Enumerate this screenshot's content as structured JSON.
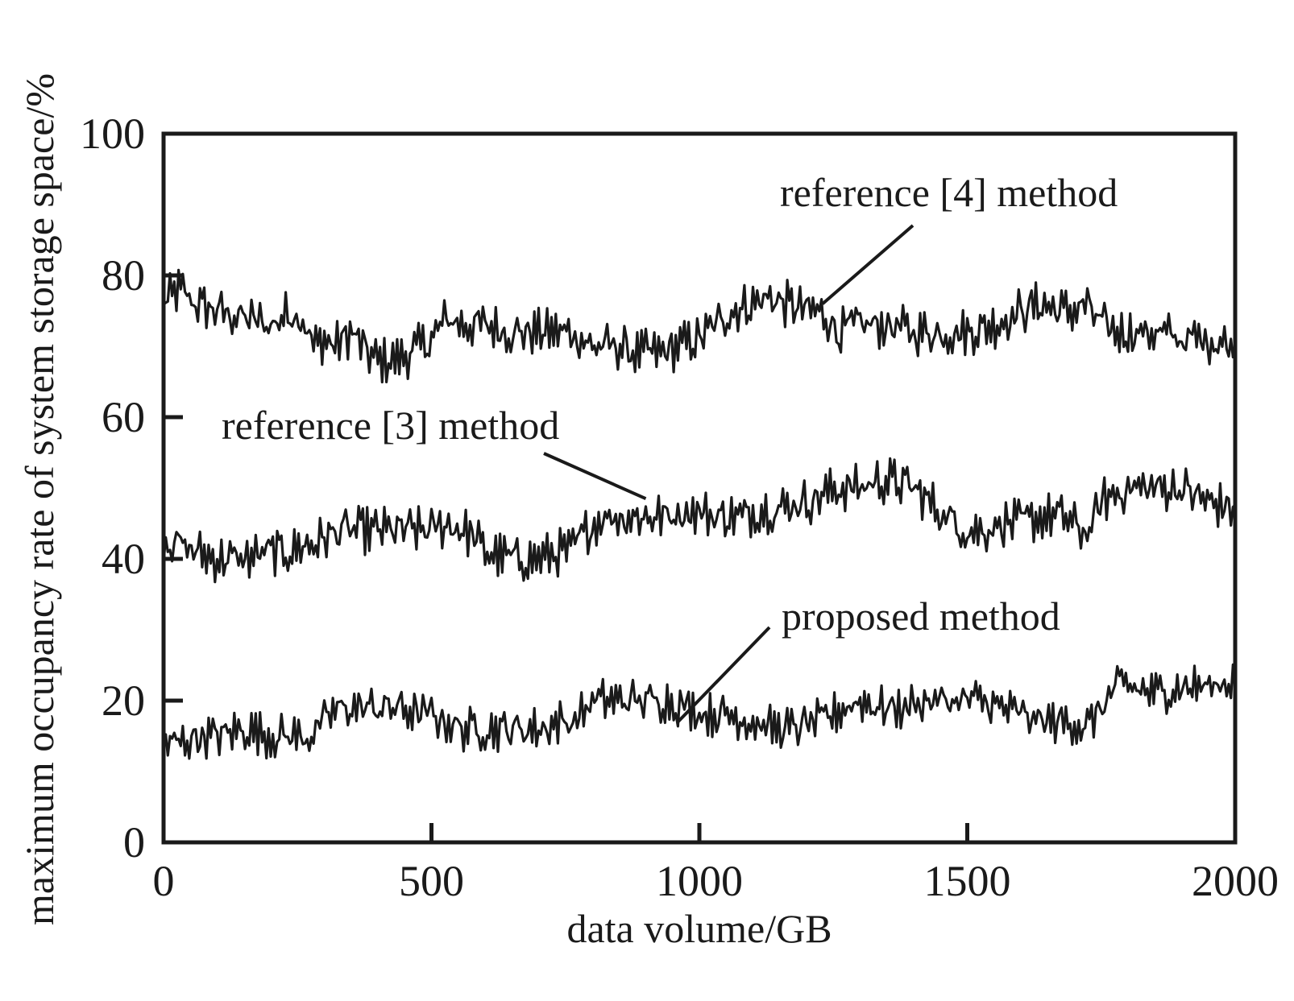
{
  "chart_data": {
    "type": "line",
    "title": "",
    "xlabel": "data volume/GB",
    "ylabel": "maximum occupancy rate of system storage space/%",
    "xlim": [
      0,
      2000
    ],
    "ylim": [
      0,
      100
    ],
    "xticks": [
      "0",
      "500",
      "1000",
      "1500",
      "2000"
    ],
    "yticks": [
      "0",
      "20",
      "40",
      "60",
      "80",
      "100"
    ],
    "grid": false,
    "legend": "none",
    "line_color": "#1a1a1a",
    "series": [
      {
        "name": "reference [4] method",
        "x": [
          0,
          30,
          60,
          100,
          150,
          200,
          240,
          260,
          280,
          300,
          320,
          350,
          380,
          400,
          430,
          460,
          480,
          500,
          530,
          560,
          600,
          650,
          700,
          740,
          760,
          780,
          800,
          850,
          880,
          900,
          930,
          960,
          1000,
          1030,
          1060,
          1100,
          1130,
          1160,
          1200,
          1220,
          1240,
          1260,
          1300,
          1350,
          1400,
          1450,
          1500,
          1550,
          1600,
          1640,
          1670,
          1700,
          1720,
          1750,
          1780,
          1800,
          1850,
          1900,
          1950,
          2000
        ],
        "values": [
          76,
          78,
          76,
          75,
          74,
          73,
          75,
          74,
          70,
          71,
          70,
          72,
          69,
          68,
          68,
          69,
          70,
          71,
          74,
          73,
          73,
          72,
          72,
          72,
          72,
          71,
          70,
          70,
          69,
          69,
          69,
          70,
          71,
          73,
          75,
          76,
          77,
          76,
          75,
          75,
          74,
          72,
          73,
          73,
          72,
          72,
          72,
          73,
          75,
          76,
          75,
          75,
          76,
          73,
          72,
          72,
          72,
          71,
          71,
          70
        ]
      },
      {
        "name": "reference [3] method",
        "x": [
          0,
          30,
          60,
          100,
          150,
          200,
          240,
          260,
          280,
          300,
          330,
          360,
          400,
          450,
          500,
          530,
          560,
          580,
          600,
          650,
          700,
          740,
          760,
          770,
          790,
          820,
          860,
          900,
          940,
          980,
          1030,
          1080,
          1120,
          1150,
          1180,
          1200,
          1230,
          1260,
          1300,
          1330,
          1360,
          1400,
          1430,
          1460,
          1500,
          1530,
          1560,
          1600,
          1640,
          1680,
          1710,
          1730,
          1750,
          1770,
          1800,
          1850,
          1900,
          1950,
          2000
        ],
        "values": [
          43,
          42,
          41,
          40,
          40,
          41,
          41,
          42,
          42,
          43,
          44,
          44,
          44,
          44,
          44,
          45,
          44,
          43,
          41,
          40,
          40,
          41,
          41,
          42,
          44,
          46,
          46,
          46,
          46,
          47,
          46,
          46,
          47,
          47,
          48,
          48,
          49,
          50,
          50,
          51,
          51,
          50,
          48,
          46,
          44,
          44,
          45,
          45,
          46,
          46,
          44,
          44,
          48,
          49,
          50,
          50,
          50,
          48,
          47
        ]
      },
      {
        "name": "proposed method",
        "x": [
          0,
          30,
          60,
          100,
          150,
          200,
          240,
          270,
          290,
          310,
          330,
          360,
          400,
          440,
          480,
          500,
          530,
          560,
          600,
          650,
          700,
          740,
          760,
          780,
          800,
          830,
          860,
          900,
          940,
          980,
          1020,
          1060,
          1100,
          1140,
          1180,
          1210,
          1230,
          1250,
          1270,
          1300,
          1340,
          1380,
          1420,
          1460,
          1500,
          1530,
          1560,
          1600,
          1640,
          1670,
          1700,
          1720,
          1740,
          1760,
          1780,
          1800,
          1850,
          1900,
          1950,
          2000
        ],
        "values": [
          14,
          14,
          15,
          15,
          16,
          15,
          15,
          15,
          16,
          18,
          19,
          19,
          19,
          19,
          18,
          18,
          17,
          16,
          16,
          16,
          16,
          17,
          17,
          18,
          20,
          20,
          20,
          20,
          20,
          19,
          18,
          18,
          17,
          16,
          16,
          17,
          17,
          18,
          19,
          20,
          19,
          19,
          20,
          20,
          20,
          20,
          19,
          18,
          17,
          17,
          17,
          16,
          18,
          20,
          22,
          22,
          21,
          22,
          22,
          23
        ]
      }
    ],
    "annotations": [
      {
        "text": "reference [4] method",
        "series": 0
      },
      {
        "text": "reference [3] method",
        "series": 1
      },
      {
        "text": "proposed method",
        "series": 2
      }
    ]
  }
}
